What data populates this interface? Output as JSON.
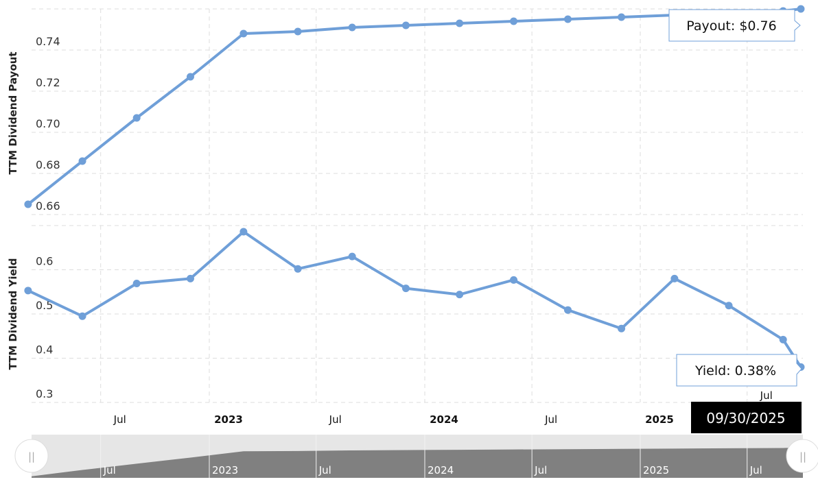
{
  "chart_data": [
    {
      "type": "line",
      "ylabel": "TTM Dividend Payout",
      "ylim": [
        0.66,
        0.76
      ],
      "yticks": [
        "0.66",
        "0.68",
        "0.70",
        "0.72",
        "0.74"
      ],
      "grid": true,
      "color": "#6f9fd8",
      "x": [
        "2022-02-28",
        "2022-05-31",
        "2022-08-31",
        "2022-11-30",
        "2023-02-28",
        "2023-05-31",
        "2023-08-31",
        "2023-11-30",
        "2024-02-29",
        "2024-05-31",
        "2024-08-31",
        "2024-11-30",
        "2025-02-28",
        "2025-05-31",
        "2025-08-31",
        "2025-09-30"
      ],
      "values": [
        0.665,
        0.686,
        0.707,
        0.727,
        0.748,
        0.749,
        0.751,
        0.752,
        0.753,
        0.754,
        0.755,
        0.756,
        0.757,
        0.758,
        0.759,
        0.76
      ],
      "tooltip": "Payout: $0.76"
    },
    {
      "type": "line",
      "ylabel": "TTM Dividend Yield",
      "ylim": [
        0.3,
        0.7
      ],
      "yticks": [
        "0.3",
        "0.4",
        "0.5",
        "0.6"
      ],
      "grid": true,
      "color": "#6f9fd8",
      "x": [
        "2022-02-28",
        "2022-05-31",
        "2022-08-31",
        "2022-11-30",
        "2023-02-28",
        "2023-05-31",
        "2023-08-31",
        "2023-11-30",
        "2024-02-29",
        "2024-05-31",
        "2024-08-31",
        "2024-11-30",
        "2025-02-28",
        "2025-05-31",
        "2025-08-31",
        "2025-09-30"
      ],
      "values": [
        0.553,
        0.495,
        0.569,
        0.58,
        0.686,
        0.602,
        0.63,
        0.558,
        0.544,
        0.577,
        0.509,
        0.467,
        0.58,
        0.519,
        0.442,
        0.38
      ],
      "tooltip": "Yield: 0.38%"
    }
  ],
  "x_axis": {
    "ticks": [
      {
        "date": "2022-07-01",
        "label": "Jul",
        "bold": false
      },
      {
        "date": "2023-01-01",
        "label": "2023",
        "bold": true
      },
      {
        "date": "2023-07-01",
        "label": "Jul",
        "bold": false
      },
      {
        "date": "2024-01-01",
        "label": "2024",
        "bold": true
      },
      {
        "date": "2024-07-01",
        "label": "Jul",
        "bold": false
      },
      {
        "date": "2025-01-01",
        "label": "2025",
        "bold": true
      },
      {
        "date": "2025-07-01",
        "label": "Jul",
        "bold": false
      }
    ],
    "hover_date": "09/30/2025"
  },
  "navigator": {
    "labels": [
      "Jul",
      "2023",
      "Jul",
      "2024",
      "Jul",
      "2025",
      "Jul"
    ],
    "handle_glyph": "||"
  }
}
